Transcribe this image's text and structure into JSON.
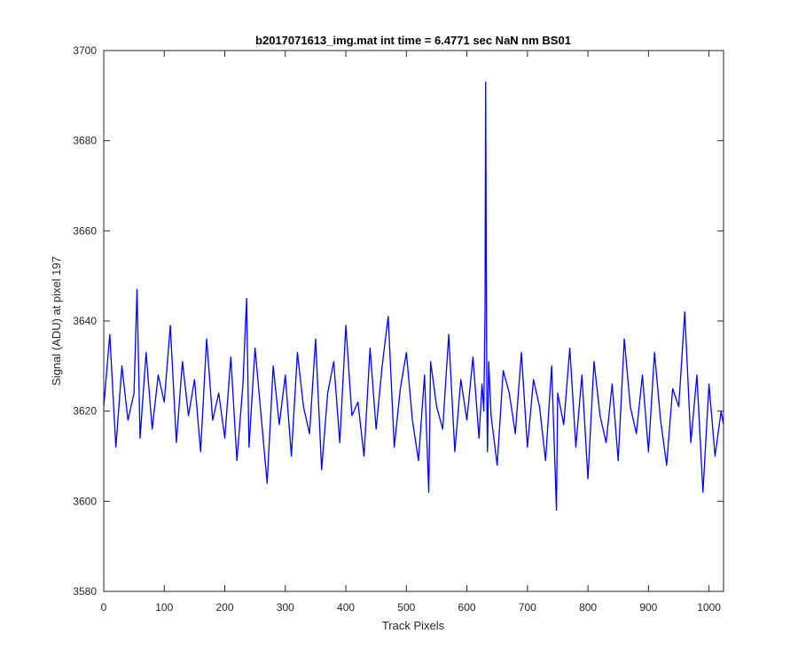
{
  "chart_data": {
    "type": "line",
    "title": "b2017071613_img.mat int time = 6.4771 sec  NaN nm BS01",
    "xlabel": "Track Pixels",
    "ylabel": "Signal (ADU) at pixel 197",
    "xlim": [
      0,
      1024
    ],
    "ylim": [
      3580,
      3700
    ],
    "xticks": [
      0,
      100,
      200,
      300,
      400,
      500,
      600,
      700,
      800,
      900,
      1000
    ],
    "yticks": [
      3580,
      3600,
      3620,
      3640,
      3660,
      3680,
      3700
    ],
    "grid": false,
    "series": [
      {
        "color": "#0000ff",
        "x": [
          0,
          10,
          20,
          30,
          40,
          50,
          55,
          60,
          70,
          80,
          90,
          100,
          110,
          120,
          130,
          140,
          150,
          160,
          170,
          180,
          190,
          200,
          210,
          220,
          230,
          236,
          240,
          250,
          260,
          270,
          280,
          290,
          300,
          310,
          320,
          330,
          340,
          350,
          360,
          370,
          380,
          390,
          400,
          410,
          420,
          430,
          440,
          450,
          460,
          470,
          480,
          490,
          500,
          510,
          520,
          530,
          537,
          540,
          550,
          560,
          570,
          580,
          590,
          600,
          610,
          620,
          625,
          628,
          630,
          631,
          632,
          633,
          634,
          636,
          640,
          650,
          660,
          670,
          680,
          690,
          700,
          710,
          720,
          730,
          740,
          748,
          750,
          760,
          770,
          780,
          790,
          800,
          810,
          820,
          830,
          840,
          850,
          860,
          870,
          880,
          890,
          900,
          910,
          920,
          930,
          940,
          950,
          960,
          970,
          980,
          990,
          1000,
          1010,
          1020,
          1024
        ],
        "y": [
          3621,
          3637,
          3612,
          3630,
          3618,
          3624,
          3647,
          3614,
          3633,
          3616,
          3628,
          3622,
          3639,
          3613,
          3631,
          3619,
          3627,
          3611,
          3636,
          3618,
          3624,
          3614,
          3632,
          3609,
          3626,
          3645,
          3612,
          3634,
          3619,
          3604,
          3630,
          3617,
          3628,
          3610,
          3633,
          3621,
          3615,
          3636,
          3607,
          3624,
          3631,
          3613,
          3639,
          3619,
          3622,
          3610,
          3634,
          3616,
          3630,
          3641,
          3612,
          3625,
          3633,
          3618,
          3609,
          3628,
          3602,
          3631,
          3621,
          3616,
          3637,
          3611,
          3627,
          3618,
          3632,
          3614,
          3626,
          3620,
          3643,
          3693,
          3655,
          3622,
          3611,
          3631,
          3619,
          3608,
          3629,
          3624,
          3615,
          3633,
          3612,
          3627,
          3621,
          3609,
          3630,
          3598,
          3624,
          3617,
          3634,
          3612,
          3628,
          3605,
          3631,
          3619,
          3613,
          3626,
          3609,
          3636,
          3621,
          3615,
          3628,
          3611,
          3633,
          3618,
          3608,
          3625,
          3621,
          3642,
          3613,
          3628,
          3602,
          3626,
          3610,
          3620,
          3617
        ]
      }
    ]
  }
}
